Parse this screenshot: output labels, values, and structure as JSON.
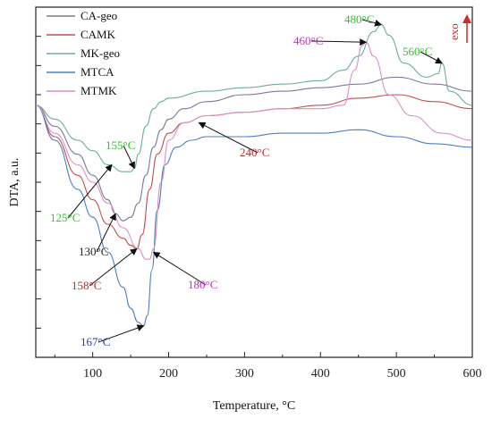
{
  "chart_data": {
    "type": "line",
    "title": "",
    "xlabel": "Temperature, °C",
    "ylabel": "DTA, a.u.",
    "xlim": [
      25,
      600
    ],
    "ylim": [
      0,
      100
    ],
    "x_ticks": [
      100,
      200,
      300,
      400,
      500,
      600
    ],
    "y_ticks_count": 12,
    "grid": false,
    "legend_position": "top-left",
    "exo_label": "exo",
    "exo_arrow_color": "#d62728",
    "series": [
      {
        "name": "CA-geo",
        "color": "#7a7a9c",
        "x": [
          25,
          50,
          80,
          100,
          120,
          130,
          140,
          150,
          160,
          170,
          180,
          190,
          200,
          220,
          250,
          300,
          350,
          400,
          450,
          500,
          550,
          600
        ],
        "y": [
          72,
          66,
          58,
          52,
          45,
          41,
          39,
          40,
          44,
          52,
          60,
          65,
          68,
          71,
          73,
          75,
          76,
          77,
          78,
          80,
          78,
          76
        ]
      },
      {
        "name": "CAMK",
        "color": "#c0504d",
        "x": [
          25,
          50,
          80,
          100,
          120,
          140,
          150,
          158,
          165,
          175,
          185,
          200,
          220,
          250,
          300,
          350,
          400,
          450,
          500,
          550,
          600
        ],
        "y": [
          72,
          63,
          52,
          45,
          38,
          34,
          32,
          31,
          35,
          48,
          58,
          64,
          67,
          69,
          70,
          71,
          72,
          74,
          75,
          73,
          71
        ]
      },
      {
        "name": "MK-geo",
        "color": "#6aaea0",
        "x": [
          25,
          50,
          80,
          100,
          120,
          140,
          150,
          155,
          160,
          170,
          180,
          190,
          200,
          250,
          300,
          350,
          400,
          430,
          450,
          470,
          480,
          490,
          510,
          540,
          555,
          560,
          570,
          600
        ],
        "y": [
          72,
          68,
          62,
          59,
          55,
          53,
          53,
          54,
          58,
          66,
          71,
          73,
          74,
          76,
          77,
          78,
          79,
          82,
          86,
          93,
          95,
          92,
          84,
          80,
          81,
          84,
          76,
          72
        ]
      },
      {
        "name": "MTCA",
        "color": "#4b7fbf",
        "x": [
          25,
          50,
          80,
          100,
          120,
          140,
          150,
          160,
          167,
          172,
          178,
          185,
          195,
          210,
          230,
          250,
          300,
          350,
          400,
          450,
          500,
          550,
          600
        ],
        "y": [
          72,
          62,
          48,
          40,
          30,
          20,
          14,
          10,
          9,
          12,
          25,
          42,
          55,
          60,
          62,
          63,
          63,
          64,
          64,
          65,
          63,
          61,
          60
        ]
      },
      {
        "name": "MTMK",
        "color": "#d98fc6",
        "x": [
          25,
          50,
          80,
          100,
          120,
          140,
          160,
          170,
          175,
          180,
          190,
          200,
          220,
          250,
          300,
          350,
          400,
          430,
          445,
          455,
          460,
          470,
          490,
          520,
          560,
          600
        ],
        "y": [
          72,
          64,
          55,
          50,
          44,
          37,
          31,
          28,
          28,
          31,
          50,
          62,
          67,
          69,
          70,
          71,
          71,
          72,
          82,
          89,
          90,
          86,
          75,
          69,
          64,
          62
        ]
      }
    ],
    "annotations": [
      {
        "text": "480°C",
        "color": "#2fbf2f",
        "x": 480,
        "y": 95
      },
      {
        "text": "460°C",
        "color": "#c030c0",
        "x": 460,
        "y": 90
      },
      {
        "text": "560°C",
        "color": "#2fbf2f",
        "x": 560,
        "y": 84
      },
      {
        "text": "240°C",
        "color": "#b03030",
        "x": 240,
        "y": 67
      },
      {
        "text": "155°C",
        "color": "#2fbf2f",
        "x": 155,
        "y": 54
      },
      {
        "text": "125°C",
        "color": "#2fbf2f",
        "x": 125,
        "y": 55
      },
      {
        "text": "130°C",
        "color": "#222222",
        "x": 130,
        "y": 41
      },
      {
        "text": "158°C",
        "color": "#b03030",
        "x": 158,
        "y": 31
      },
      {
        "text": "180°C",
        "color": "#c030c0",
        "x": 180,
        "y": 30
      },
      {
        "text": "167°C",
        "color": "#1f3fbf",
        "x": 167,
        "y": 9
      }
    ]
  }
}
